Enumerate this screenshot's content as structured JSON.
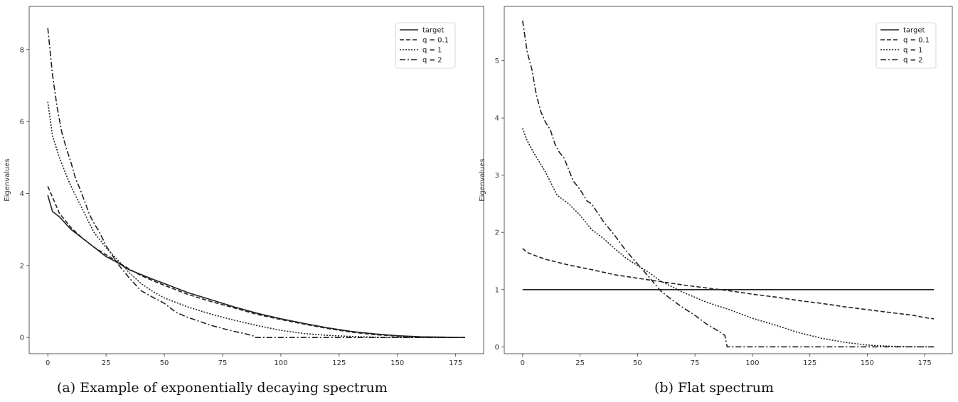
{
  "chart_data": [
    {
      "type": "line",
      "caption": "(a) Example of exponentially decaying spectrum",
      "xlabel": "",
      "ylabel": "Eigenvalues",
      "xlim": [
        -8,
        187
      ],
      "ylim": [
        -0.45,
        9.2
      ],
      "xticks": [
        0,
        25,
        50,
        75,
        100,
        125,
        150,
        175
      ],
      "yticks": [
        0,
        2,
        4,
        6,
        8
      ],
      "grid": false,
      "legend_position": "top-right",
      "series": [
        {
          "name": "target",
          "style": "solid",
          "x": [
            0,
            2,
            5,
            10,
            15,
            20,
            25,
            30,
            35,
            40,
            45,
            50,
            60,
            70,
            80,
            90,
            100,
            110,
            120,
            130,
            140,
            150,
            160,
            170,
            179
          ],
          "y": [
            3.95,
            3.5,
            3.35,
            3.0,
            2.75,
            2.5,
            2.25,
            2.08,
            1.88,
            1.75,
            1.62,
            1.5,
            1.25,
            1.05,
            0.85,
            0.67,
            0.52,
            0.39,
            0.27,
            0.17,
            0.1,
            0.05,
            0.02,
            0.01,
            0.0
          ]
        },
        {
          "name": "q = 0.1",
          "style": "dashed",
          "x": [
            0,
            2,
            5,
            10,
            15,
            20,
            25,
            30,
            35,
            40,
            45,
            50,
            60,
            70,
            80,
            90,
            100,
            110,
            120,
            130,
            140,
            150,
            160,
            170,
            179
          ],
          "y": [
            4.2,
            3.9,
            3.45,
            3.05,
            2.75,
            2.5,
            2.3,
            2.1,
            1.9,
            1.72,
            1.58,
            1.45,
            1.2,
            1.0,
            0.82,
            0.64,
            0.5,
            0.37,
            0.25,
            0.15,
            0.08,
            0.04,
            0.01,
            0.0,
            0.0
          ]
        },
        {
          "name": "q = 1",
          "style": "dotted",
          "x": [
            0,
            2,
            5,
            8,
            10,
            13,
            15,
            18,
            20,
            25,
            30,
            35,
            40,
            45,
            50,
            60,
            70,
            80,
            90,
            100,
            110,
            120,
            130,
            140,
            150,
            160,
            170,
            179
          ],
          "y": [
            6.55,
            5.6,
            5.0,
            4.5,
            4.2,
            3.8,
            3.55,
            3.15,
            2.9,
            2.5,
            2.15,
            1.8,
            1.5,
            1.28,
            1.1,
            0.85,
            0.65,
            0.48,
            0.33,
            0.2,
            0.11,
            0.06,
            0.03,
            0.01,
            0.0,
            0.0,
            0.0,
            0.0
          ]
        },
        {
          "name": "q = 2",
          "style": "dashdot",
          "x": [
            0,
            2,
            4,
            6,
            8,
            10,
            12,
            14,
            16,
            18,
            20,
            22,
            25,
            28,
            30,
            35,
            40,
            45,
            50,
            55,
            60,
            65,
            70,
            75,
            80,
            85,
            88,
            89,
            100,
            120,
            140,
            160,
            179
          ],
          "y": [
            8.6,
            7.3,
            6.4,
            5.7,
            5.25,
            4.85,
            4.4,
            4.1,
            3.75,
            3.4,
            3.15,
            2.95,
            2.55,
            2.25,
            2.05,
            1.65,
            1.3,
            1.12,
            0.95,
            0.7,
            0.56,
            0.45,
            0.34,
            0.25,
            0.17,
            0.1,
            0.05,
            0.0,
            0.0,
            0.0,
            0.0,
            0.0,
            0.0
          ]
        }
      ]
    },
    {
      "type": "line",
      "caption": "(b) Flat spectrum",
      "xlabel": "",
      "ylabel": "Eigenvalues",
      "xlim": [
        -8,
        187
      ],
      "ylim": [
        -0.12,
        5.95
      ],
      "xticks": [
        0,
        25,
        50,
        75,
        100,
        125,
        150,
        175
      ],
      "yticks": [
        0,
        1,
        2,
        3,
        4,
        5
      ],
      "grid": false,
      "legend_position": "top-right",
      "series": [
        {
          "name": "target",
          "style": "solid",
          "x": [
            0,
            179
          ],
          "y": [
            1.0,
            1.0
          ]
        },
        {
          "name": "q = 0.1",
          "style": "dashed",
          "x": [
            0,
            2,
            5,
            10,
            20,
            30,
            40,
            50,
            60,
            70,
            80,
            90,
            100,
            110,
            120,
            130,
            140,
            150,
            160,
            170,
            175,
            179
          ],
          "y": [
            1.72,
            1.65,
            1.6,
            1.53,
            1.43,
            1.35,
            1.26,
            1.2,
            1.14,
            1.08,
            1.03,
            0.98,
            0.92,
            0.87,
            0.81,
            0.76,
            0.7,
            0.65,
            0.6,
            0.55,
            0.51,
            0.49
          ]
        },
        {
          "name": "q = 1",
          "style": "dotted",
          "x": [
            0,
            2,
            5,
            10,
            15,
            20,
            25,
            30,
            35,
            40,
            45,
            50,
            55,
            60,
            70,
            80,
            90,
            100,
            110,
            120,
            130,
            140,
            150,
            160,
            170,
            179
          ],
          "y": [
            3.82,
            3.6,
            3.38,
            3.05,
            2.65,
            2.5,
            2.3,
            2.05,
            1.9,
            1.72,
            1.55,
            1.42,
            1.3,
            1.15,
            0.95,
            0.78,
            0.65,
            0.5,
            0.38,
            0.25,
            0.15,
            0.08,
            0.03,
            0.01,
            0.0,
            0.0
          ]
        },
        {
          "name": "q = 2",
          "style": "dashdot",
          "x": [
            0,
            2,
            4,
            6,
            8,
            10,
            12,
            14,
            16,
            18,
            20,
            22,
            25,
            28,
            30,
            35,
            40,
            45,
            50,
            55,
            60,
            65,
            70,
            75,
            80,
            85,
            88,
            89,
            100,
            120,
            140,
            160,
            179
          ],
          "y": [
            5.7,
            5.15,
            4.85,
            4.4,
            4.1,
            3.92,
            3.8,
            3.55,
            3.4,
            3.3,
            3.1,
            2.9,
            2.75,
            2.55,
            2.5,
            2.2,
            1.95,
            1.68,
            1.45,
            1.22,
            0.98,
            0.82,
            0.68,
            0.55,
            0.4,
            0.28,
            0.2,
            0.0,
            0.0,
            0.0,
            0.0,
            0.0,
            0.0
          ]
        }
      ]
    }
  ]
}
